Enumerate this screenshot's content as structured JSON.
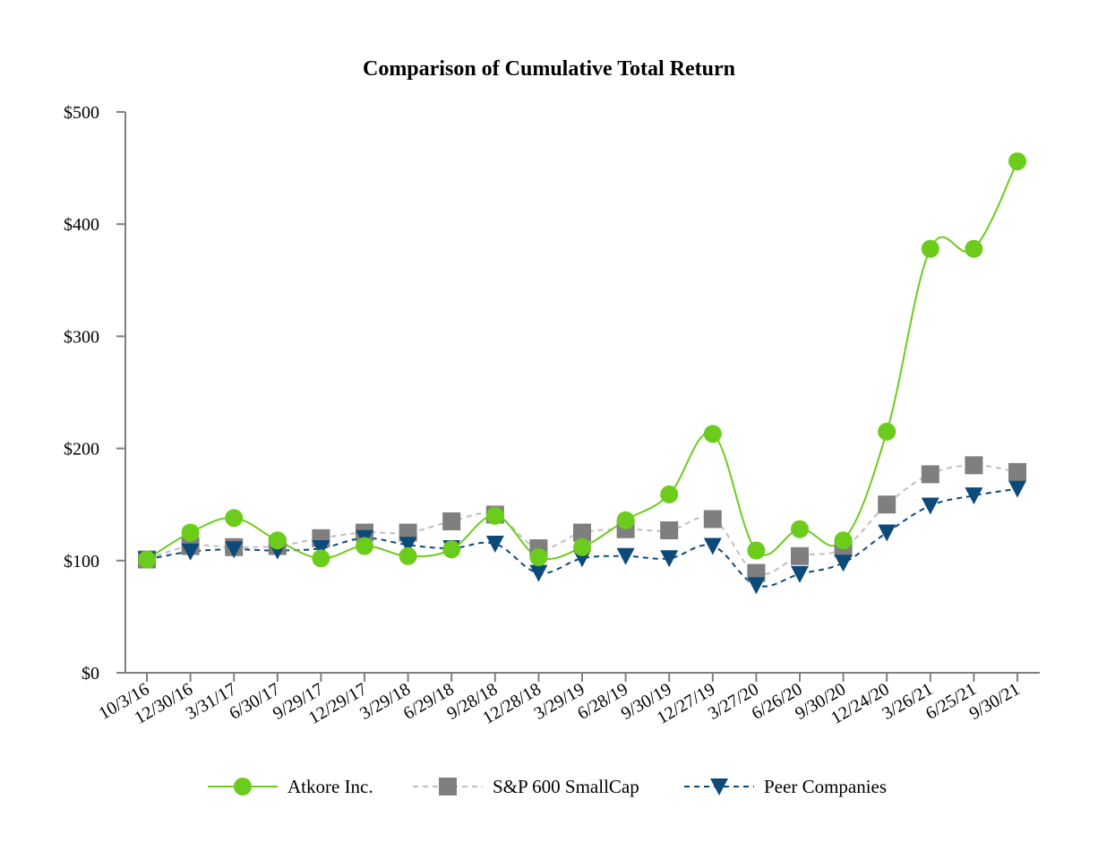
{
  "chart_data": {
    "type": "line",
    "title": "Comparison of Cumulative Total Return",
    "xlabel": "",
    "ylabel": "",
    "ylim": [
      0,
      500
    ],
    "yticks": [
      0,
      100,
      200,
      300,
      400,
      500
    ],
    "ytick_labels": [
      "$0",
      "$100",
      "$200",
      "$300",
      "$400",
      "$500"
    ],
    "categories": [
      "10/3/16",
      "12/30/16",
      "3/31/17",
      "6/30/17",
      "9/29/17",
      "12/29/17",
      "3/29/18",
      "6/29/18",
      "9/28/18",
      "12/28/18",
      "3/29/19",
      "6/28/19",
      "9/30/19",
      "12/27/19",
      "3/27/20",
      "6/26/20",
      "9/30/20",
      "12/24/20",
      "3/26/21",
      "6/25/21",
      "9/30/21"
    ],
    "grid": false,
    "legend_position": "bottom-center",
    "series": [
      {
        "name": "Atkore Inc.",
        "color": "#6ccc1c",
        "marker": "circle",
        "line_style": "solid",
        "values": [
          101,
          125,
          138,
          118,
          102,
          113,
          104,
          110,
          140,
          103,
          112,
          136,
          159,
          213,
          109,
          128,
          118,
          215,
          378,
          378,
          456
        ]
      },
      {
        "name": "S&P 600 SmallCap",
        "color": "#7f7f7f",
        "line_color": "#bfbfbf",
        "marker": "square",
        "line_style": "dashed",
        "values": [
          101,
          113,
          112,
          113,
          120,
          125,
          125,
          135,
          141,
          111,
          125,
          128,
          127,
          137,
          89,
          104,
          111,
          150,
          177,
          185,
          179
        ]
      },
      {
        "name": "Peer Companies",
        "color": "#0c4a7a",
        "marker": "triangle-down",
        "line_style": "dashed",
        "values": [
          101,
          108,
          110,
          109,
          111,
          120,
          114,
          111,
          115,
          89,
          102,
          104,
          102,
          113,
          78,
          88,
          98,
          125,
          149,
          158,
          164
        ]
      }
    ]
  }
}
